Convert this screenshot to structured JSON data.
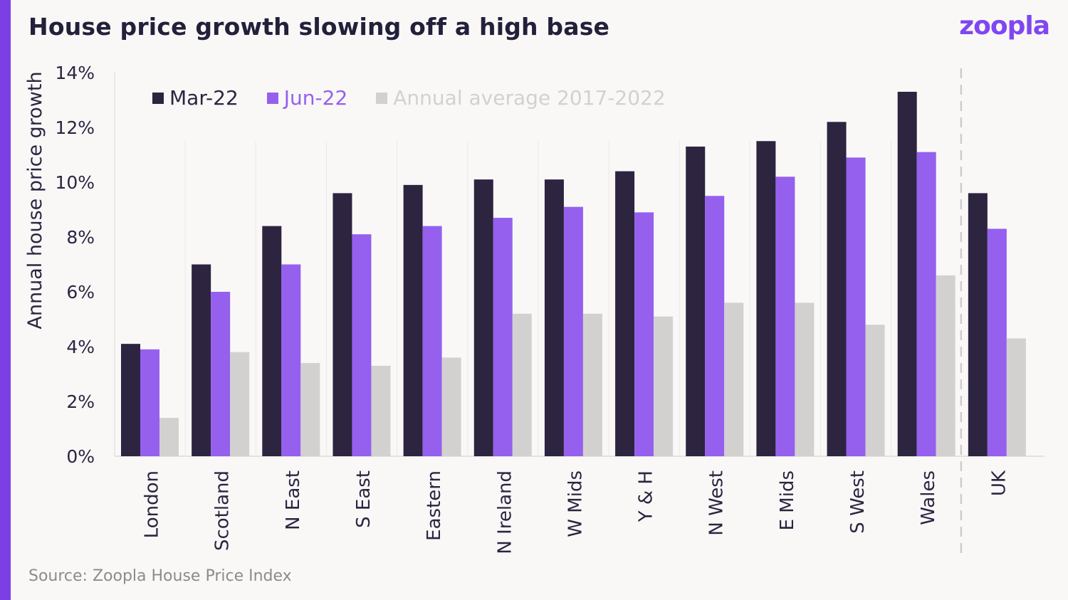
{
  "title": "House price growth slowing off a high base",
  "logo": "zoopla",
  "source": "Source: Zoopla House Price Index",
  "colors": {
    "accent": "#7b3fe4",
    "mar22": "#2d2440",
    "jun22": "#9560ee",
    "avg": "#d3d1d0"
  },
  "chart_data": {
    "type": "bar",
    "ylabel": "Annual house price growth",
    "xlabel": "",
    "ylim": [
      0,
      14
    ],
    "yticks": [
      "0%",
      "2%",
      "4%",
      "6%",
      "8%",
      "10%",
      "12%",
      "14%"
    ],
    "legend_position": "top-left",
    "grid": "vertical separators between categories",
    "categories": [
      "London",
      "Scotland",
      "N East",
      "S East",
      "Eastern",
      "N Ireland",
      "W Mids",
      "Y & H",
      "N West",
      "E Mids",
      "S West",
      "Wales",
      "UK"
    ],
    "series": [
      {
        "name": "Mar-22",
        "values": [
          4.1,
          7.0,
          8.4,
          9.6,
          9.9,
          10.1,
          10.1,
          10.4,
          11.3,
          11.5,
          12.2,
          13.3,
          9.6
        ]
      },
      {
        "name": "Jun-22",
        "values": [
          3.9,
          6.0,
          7.0,
          8.1,
          8.4,
          8.7,
          9.1,
          8.9,
          9.5,
          10.2,
          10.9,
          11.1,
          8.3
        ]
      },
      {
        "name": "Annual average 2017-2022",
        "values": [
          1.4,
          3.8,
          3.4,
          3.3,
          3.6,
          5.2,
          5.2,
          5.1,
          5.6,
          5.6,
          4.8,
          6.6,
          4.3
        ]
      }
    ]
  }
}
